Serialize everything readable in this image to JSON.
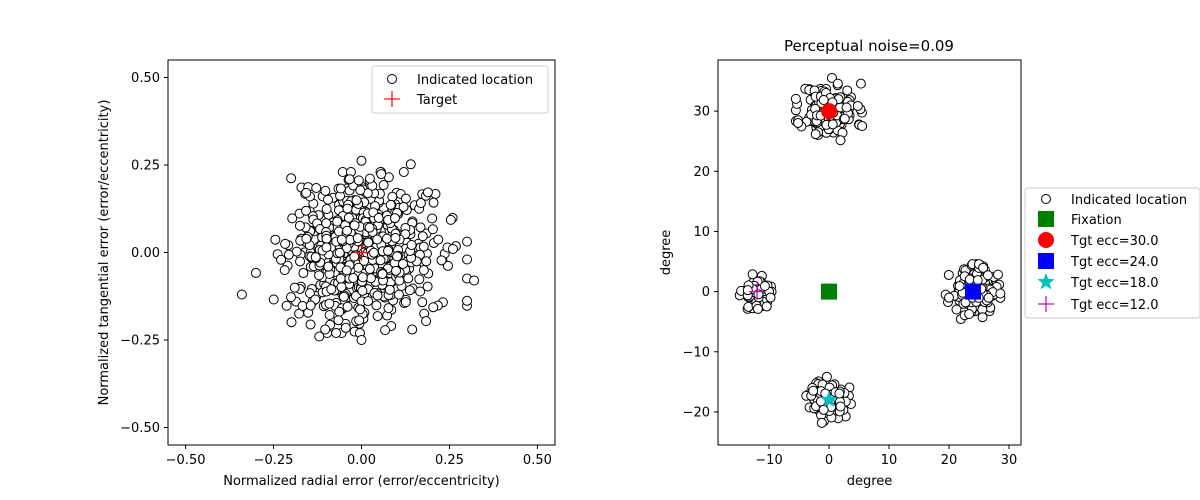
{
  "chart_data": [
    {
      "type": "scatter",
      "title": "",
      "xlabel": "Normalized radial error (error/eccentricity)",
      "ylabel": "Normalized tangential error (error/eccentricity)",
      "xlim": [
        -0.55,
        0.55
      ],
      "ylim": [
        -0.55,
        0.55
      ],
      "xticks": [
        -0.5,
        -0.25,
        0,
        0.25,
        0.5
      ],
      "xtick_labels": [
        "−0.50",
        "−0.25",
        "0.00",
        "0.25",
        "0.50"
      ],
      "yticks": [
        -0.5,
        -0.25,
        0,
        0.25,
        0.5
      ],
      "ytick_labels": [
        "−0.50",
        "−0.25",
        "0.00",
        "0.25",
        "0.50"
      ],
      "grid": false,
      "legend_position": "top-right",
      "series": [
        {
          "name": "Indicated location",
          "marker": "circle",
          "color": "#000000",
          "fill": "#ffffff",
          "distribution": {
            "count": 650,
            "center": [
              0,
              0
            ],
            "spread": 0.1,
            "seed": 7
          },
          "points": [
            [
              -0.34,
              -0.12
            ],
            [
              0.32,
              -0.08
            ],
            [
              0.3,
              -0.02
            ],
            [
              0.0,
              0.262
            ],
            [
              0.14,
              0.252
            ],
            [
              -0.2,
              0.212
            ],
            [
              0.0,
              -0.25
            ],
            [
              -0.12,
              -0.24
            ],
            [
              0.26,
              0.01
            ]
          ]
        },
        {
          "name": "Target",
          "marker": "plus",
          "color": "#ff0000",
          "points": [
            [
              0,
              0
            ]
          ]
        }
      ]
    },
    {
      "type": "scatter",
      "title": "Perceptual noise=0.09",
      "xlabel": "degree",
      "ylabel": "degree",
      "xlim": [
        -18.5,
        32
      ],
      "ylim": [
        -25.5,
        38.5
      ],
      "xticks": [
        -10,
        0,
        10,
        20,
        30
      ],
      "xtick_labels": [
        "−10",
        "0",
        "10",
        "20",
        "30"
      ],
      "yticks": [
        -20,
        -10,
        0,
        10,
        20,
        30
      ],
      "ytick_labels": [
        "−20",
        "−10",
        "0",
        "10",
        "20",
        "30"
      ],
      "grid": false,
      "legend_position": "outside-right",
      "series": [
        {
          "name": "Indicated location",
          "marker": "circle",
          "color": "#000000",
          "fill": "#ffffff",
          "clusters": [
            {
              "center": [
                0,
                30
              ],
              "spread": 2.3,
              "count": 150,
              "seed": 11
            },
            {
              "center": [
                24,
                0
              ],
              "spread": 1.9,
              "count": 130,
              "seed": 23
            },
            {
              "center": [
                0,
                -18
              ],
              "spread": 1.6,
              "count": 110,
              "seed": 37
            },
            {
              "center": [
                -12,
                0
              ],
              "spread": 1.2,
              "count": 90,
              "seed": 53
            }
          ]
        },
        {
          "name": "Fixation",
          "marker": "square",
          "color": "#008000",
          "points": [
            [
              0,
              0
            ]
          ]
        },
        {
          "name": "Tgt ecc=30.0",
          "marker": "circle-filled",
          "color": "#ff0000",
          "points": [
            [
              0,
              30
            ]
          ]
        },
        {
          "name": "Tgt ecc=24.0",
          "marker": "square",
          "color": "#0000ff",
          "points": [
            [
              24,
              0
            ]
          ]
        },
        {
          "name": "Tgt ecc=18.0",
          "marker": "star",
          "color": "#00bfbf",
          "points": [
            [
              0,
              -18
            ]
          ]
        },
        {
          "name": "Tgt ecc=12.0",
          "marker": "plus",
          "color": "#bf00bf",
          "points": [
            [
              -12,
              0
            ]
          ]
        }
      ]
    }
  ]
}
